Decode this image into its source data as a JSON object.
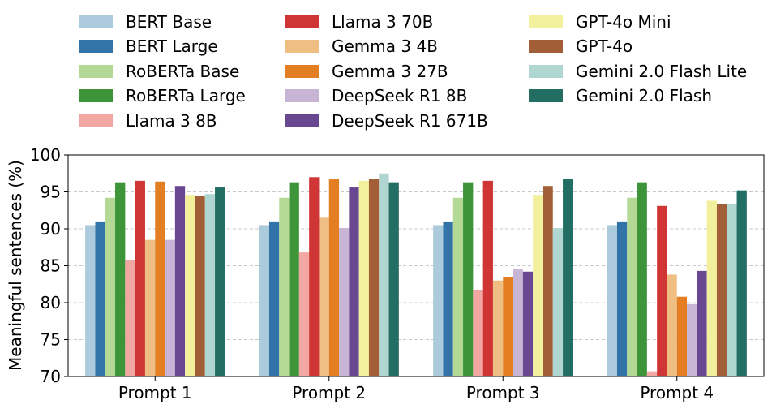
{
  "chart_data": {
    "type": "bar",
    "title": "",
    "xlabel": "",
    "ylabel": "Meaningful sentences (%)",
    "ylim": [
      70,
      100
    ],
    "yticks": [
      70,
      75,
      80,
      85,
      90,
      95,
      100
    ],
    "grid": "y-dashed",
    "legend_position": "top",
    "categories": [
      "Prompt 1",
      "Prompt 2",
      "Prompt 3",
      "Prompt 4"
    ],
    "series": [
      {
        "name": "BERT Base",
        "color": "#abcadc",
        "values": [
          90.5,
          90.5,
          90.5,
          90.5
        ]
      },
      {
        "name": "BERT Large",
        "color": "#3274a8",
        "values": [
          91.0,
          91.0,
          91.0,
          91.0
        ]
      },
      {
        "name": "RoBERTa Base",
        "color": "#b4d996",
        "values": [
          94.2,
          94.2,
          94.2,
          94.2
        ]
      },
      {
        "name": "RoBERTa Large",
        "color": "#3d9439",
        "values": [
          96.3,
          96.3,
          96.3,
          96.3
        ]
      },
      {
        "name": "Llama 3 8B",
        "color": "#f2a7a3",
        "values": [
          85.8,
          86.8,
          81.7,
          70.7
        ]
      },
      {
        "name": "Llama 3 70B",
        "color": "#cf3535",
        "values": [
          96.5,
          97.0,
          96.5,
          93.1
        ]
      },
      {
        "name": "Gemma 3 4B",
        "color": "#efbe82",
        "values": [
          88.5,
          91.5,
          83.0,
          83.8
        ]
      },
      {
        "name": "Gemma 3 27B",
        "color": "#e37f22",
        "values": [
          96.4,
          96.7,
          83.5,
          80.8
        ]
      },
      {
        "name": "DeepSeek R1 8B",
        "color": "#c8b5d6",
        "values": [
          88.5,
          90.1,
          84.5,
          79.8
        ]
      },
      {
        "name": "DeepSeek R1 671B",
        "color": "#6a4891",
        "values": [
          95.8,
          95.6,
          84.2,
          84.3
        ]
      },
      {
        "name": "GPT-4o Mini",
        "color": "#f2ef9d",
        "values": [
          94.6,
          96.5,
          94.6,
          93.8
        ]
      },
      {
        "name": "GPT-4o",
        "color": "#a25f37",
        "values": [
          94.5,
          96.7,
          95.8,
          93.4
        ]
      },
      {
        "name": "Gemini 2.0 Flash Lite",
        "color": "#afd6d1",
        "values": [
          94.7,
          97.5,
          90.1,
          93.4
        ]
      },
      {
        "name": "Gemini 2.0 Flash",
        "color": "#236e63",
        "values": [
          95.6,
          96.3,
          96.7,
          95.2
        ]
      }
    ]
  }
}
